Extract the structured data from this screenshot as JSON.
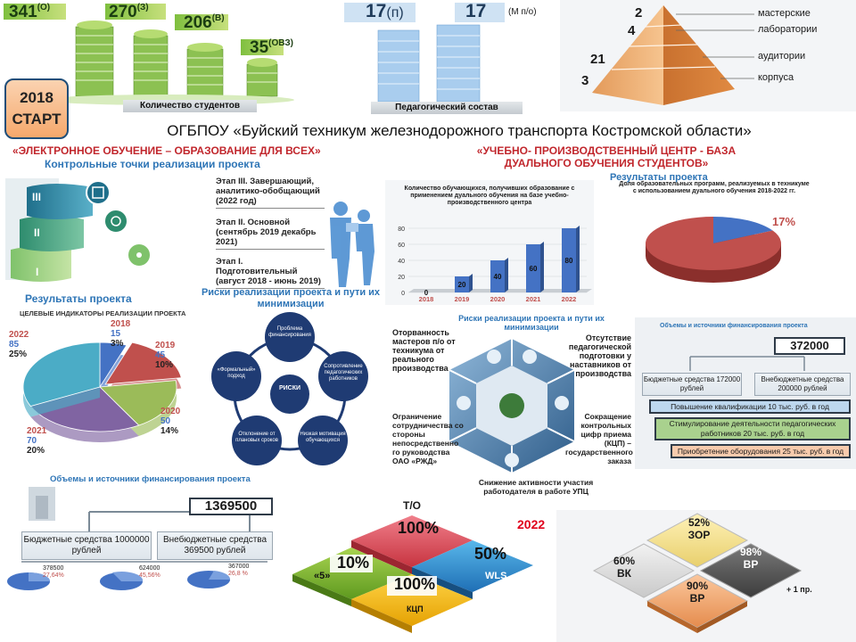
{
  "header": {
    "students": {
      "counts": [
        {
          "value": "341",
          "tag": "(О)"
        },
        {
          "value": "270",
          "tag": "(З)"
        },
        {
          "value": "206",
          "tag": "(В)"
        },
        {
          "value": "35",
          "tag": "(ОВЗ)"
        }
      ],
      "caption": "Количество студентов"
    },
    "staff": {
      "counts": [
        {
          "value": "17",
          "tag": "(п)"
        },
        {
          "value": "17",
          "tag": "(М п/о)"
        }
      ],
      "caption": "Педагогический состав"
    },
    "pyramid": {
      "levels": [
        {
          "value": "2",
          "label": "мастерские"
        },
        {
          "value": "4",
          "label": "лаборатории"
        },
        {
          "value": "21",
          "label": "аудитории"
        },
        {
          "value": "3",
          "label": "корпуса"
        }
      ]
    }
  },
  "start_badge": {
    "year": "2018",
    "label": "СТАРТ"
  },
  "main_title": "ОГБПОУ «Буйский техникум железнодорожного транспорта Костромской области»",
  "left": {
    "heading": "«ЭЛЕКТРОННОЕ ОБУЧЕНИЕ – ОБРАЗОВАНИЕ ДЛЯ ВСЕХ»",
    "subheading": "Контрольные точки реализации проекта",
    "stages": [
      {
        "roman": "III",
        "text": "Этап III. Завершающий, аналитико-обобщающий (2022 год)"
      },
      {
        "roman": "II",
        "text": "Этап II. Основной (сентябрь 2019 декабрь 2021)"
      },
      {
        "roman": "I",
        "text": "Этап I. Подготовительный (август 2018 - июнь 2019)"
      }
    ],
    "results_title": "Результаты проекта",
    "risks_title": "Риски реализации проекта и пути их минимизации",
    "risks": {
      "center": "РИСКИ",
      "items": [
        "Проблема финансирования",
        "Сопротивление педагогических работников",
        "Низкая мотивация обучающихся",
        "Отклонение от плановых сроков",
        "«Формальный» подход"
      ]
    },
    "finance": {
      "title": "Объемы и источники финансирования проекта",
      "total": "1369500",
      "budget_label": "Бюджетные средства 1000000 рублей",
      "extra_label": "Внебюджетные средства 369500 рублей",
      "mini": [
        {
          "value": "378500",
          "pct": "27,64%"
        },
        {
          "value": "624000",
          "pct": "45,56%"
        },
        {
          "value": "367000",
          "pct": "26,8 %"
        }
      ]
    }
  },
  "pie_indicators": {
    "title": "ЦЕЛЕВЫЕ ИНДИКАТОРЫ РЕАЛИЗАЦИИ ПРОЕКТА",
    "slices": [
      {
        "year": "2018",
        "value": 15,
        "pct": "3%",
        "color": "#4472c4"
      },
      {
        "year": "2019",
        "value": 45,
        "pct": "10%",
        "color": "#c0504d"
      },
      {
        "year": "2020",
        "value": 50,
        "pct": "14%",
        "color": "#9bbb59"
      },
      {
        "year": "2021",
        "value": 70,
        "pct": "20%",
        "color": "#8064a2"
      },
      {
        "year": "2022",
        "value": 85,
        "pct": "25%",
        "color": "#4bacc6"
      }
    ]
  },
  "right": {
    "heading": "«УЧЕБНО- ПРОИЗВОДСТВЕННЫЙ ЦЕНТР - БАЗА ДУАЛЬНОГО ОБУЧЕНИЯ СТУДЕНТОВ»",
    "results_title": "Результаты проекта",
    "risks_title": "Риски реализации проекта и пути их минимизации",
    "risks": [
      "Оторванность мастеров п/о от техникума от реального производства",
      "Отсутствие педагогической подготовки у наставников от производства",
      "Ограничение сотрудничества со стороны непосредственно го руководства ОАО «РЖД»",
      "Сокращение контрольных цифр приема (КЦП) – государственного заказа",
      "Снижение активности участия работодателя в работе УПЦ"
    ],
    "finance": {
      "title": "Объемы и источники финансирования проекта",
      "total": "372000",
      "budget_label": "Бюджетные средства 172000 рублей",
      "extra_label": "Внебюджетные средства 200000 рублей",
      "items": [
        "Повышение квалификации 10 тыс. руб. в год",
        "Стимулирование деятельности педагогических работников 20 тыс. руб. в год",
        "Приобретение оборудования 25 тыс. руб. в год"
      ],
      "item_colors": [
        "#bdd7ee",
        "#a9d18e",
        "#f8cbad"
      ]
    },
    "pie": {
      "title": "Доля образовательных программ, реализуемых в техникуме с использованием дуального обучения 2018-2022 гг.",
      "label": "17%"
    }
  },
  "chart_data": [
    {
      "type": "bar",
      "title": "Количество обучающихся, получивших образование с применением дуального обучения на базе учебно-производственного центра",
      "categories": [
        "2018",
        "2019",
        "2020",
        "2021",
        "2022"
      ],
      "values": [
        0,
        20,
        40,
        60,
        80
      ],
      "ylim": [
        0,
        80
      ],
      "yticks": [
        0,
        20,
        40,
        60,
        80
      ],
      "color": "#4472c4"
    },
    {
      "type": "pie",
      "title": "Доля образовательных программ, реализуемых в техникуме с использованием дуального обучения 2018-2022 гг.",
      "slices": [
        {
          "value": 17,
          "label": "17%",
          "color": "#4472c4"
        },
        {
          "value": 83,
          "label": "",
          "color": "#c0504d"
        }
      ]
    }
  ],
  "bottom": {
    "year": "2022",
    "tiles": [
      {
        "label": "Т/О",
        "value": "100%"
      },
      {
        "label": "WLS",
        "value": "50%"
      },
      {
        "label": "«5»",
        "value": "10%"
      },
      {
        "label": "КЦП",
        "value": "100%"
      }
    ],
    "diamond": [
      {
        "value": "52%",
        "label": "ЗОР"
      },
      {
        "value": "60%",
        "label": "ВК"
      },
      {
        "value": "98%",
        "label": "ВР"
      },
      {
        "value": "90%",
        "label": "ВР"
      }
    ],
    "note": "+ 1 пр."
  }
}
